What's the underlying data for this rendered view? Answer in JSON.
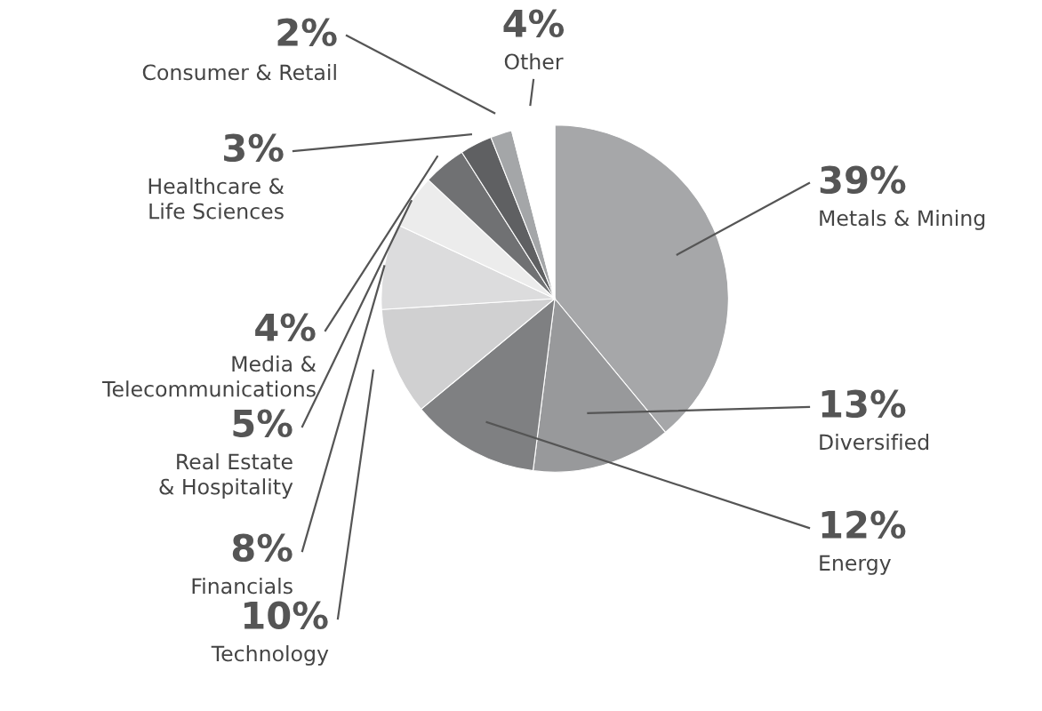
{
  "chart_data": {
    "type": "pie",
    "categories": [
      "Metals & Mining",
      "Diversified",
      "Energy",
      "Technology",
      "Financials",
      "Real Estate\n& Hospitality",
      "Media &\nTelecommunications",
      "Healthcare &\nLife Sciences",
      "Consumer & Retail",
      "Other"
    ],
    "values": [
      39,
      13,
      12,
      10,
      8,
      5,
      4,
      3,
      2,
      4
    ],
    "value_labels": [
      "39%",
      "13%",
      "12%",
      "10%",
      "8%",
      "5%",
      "4%",
      "3%",
      "2%",
      "4%"
    ],
    "colors": [
      "#a6a7a9",
      "#98999b",
      "#7f8082",
      "#d0d0d1",
      "#dcdcdd",
      "#ececec",
      "#707173",
      "#5f6062",
      "#a4a6a8",
      "#ffffff"
    ]
  }
}
